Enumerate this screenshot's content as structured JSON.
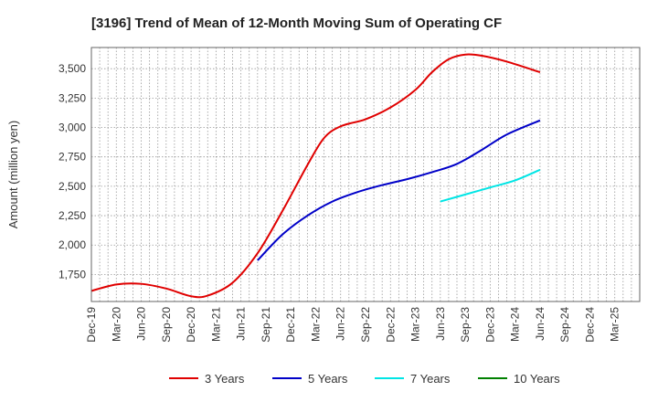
{
  "chart_data": {
    "type": "line",
    "title": "[3196]  Trend of Mean of 12-Month Moving Sum of Operating CF",
    "xlabel": "",
    "ylabel": "Amount (million yen)",
    "ylim": [
      1520,
      3680
    ],
    "yticks": [
      1750,
      2000,
      2250,
      2500,
      2750,
      3000,
      3250,
      3500
    ],
    "ytick_labels": [
      "1,750",
      "2,000",
      "2,250",
      "2,500",
      "2,750",
      "3,000",
      "3,250",
      "3,500"
    ],
    "xlim": [
      0,
      66
    ],
    "xtick_labels": [
      "Dec-19",
      "Mar-20",
      "Jun-20",
      "Sep-20",
      "Dec-20",
      "Mar-21",
      "Jun-21",
      "Sep-21",
      "Dec-21",
      "Mar-22",
      "Jun-22",
      "Sep-22",
      "Dec-22",
      "Mar-23",
      "Jun-23",
      "Sep-23",
      "Dec-23",
      "Mar-24",
      "Jun-24",
      "Sep-24",
      "Dec-24",
      "Mar-25"
    ],
    "grid": true,
    "legend_position": "bottom",
    "series": [
      {
        "name": "3 Years",
        "color": "#e00000",
        "x": [
          0,
          3,
          6,
          9,
          12,
          14,
          17,
          20,
          23,
          26,
          28,
          30,
          33,
          36,
          39,
          41,
          43,
          45,
          47,
          50,
          54
        ],
        "values": [
          1610,
          1665,
          1670,
          1630,
          1565,
          1570,
          1680,
          1930,
          2290,
          2680,
          2910,
          3010,
          3070,
          3170,
          3320,
          3470,
          3580,
          3620,
          3610,
          3560,
          3470
        ]
      },
      {
        "name": "5 Years",
        "color": "#0000c8",
        "x": [
          20,
          23,
          26,
          29,
          32,
          35,
          38,
          41,
          44,
          47,
          50,
          54
        ],
        "values": [
          1870,
          2090,
          2250,
          2370,
          2450,
          2510,
          2560,
          2620,
          2690,
          2810,
          2940,
          3060
        ]
      },
      {
        "name": "7 Years",
        "color": "#00e5e5",
        "x": [
          42,
          45,
          48,
          51,
          54
        ],
        "values": [
          2370,
          2430,
          2490,
          2550,
          2640
        ]
      },
      {
        "name": "10 Years",
        "color": "#008000",
        "x": [],
        "values": []
      }
    ]
  }
}
